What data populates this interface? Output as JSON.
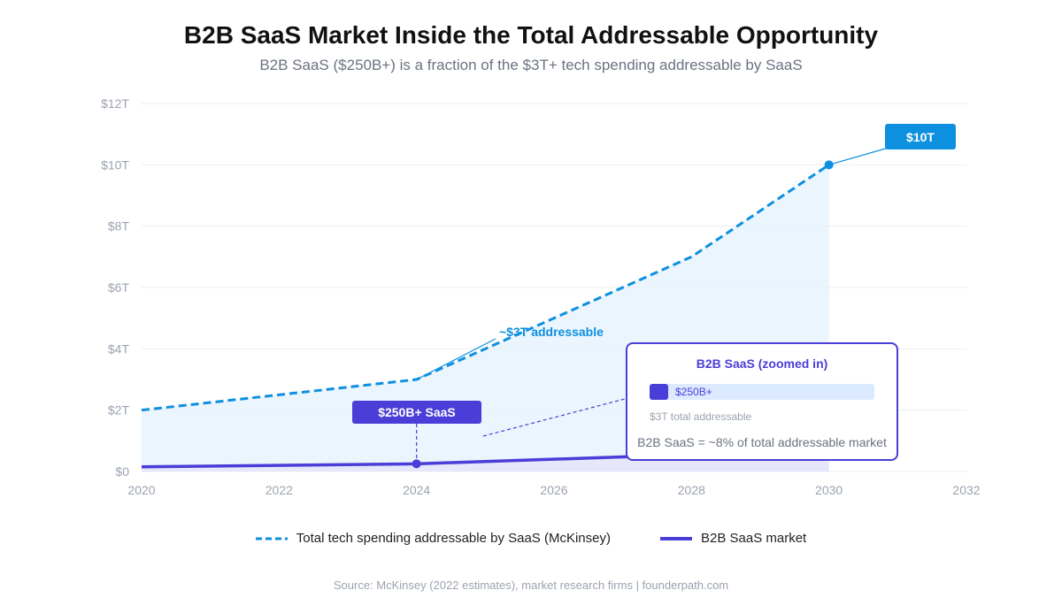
{
  "chart_data": {
    "type": "line",
    "title": "B2B SaaS Market Inside the Total Addressable Opportunity",
    "subtitle": "B2B SaaS ($250B+) is a fraction of the $3T+ tech spending addressable by SaaS",
    "xlim": [
      2020,
      2032
    ],
    "ylim": [
      0,
      12
    ],
    "x_ticks": [
      "2020",
      "2022",
      "2024",
      "2026",
      "2028",
      "2030",
      "2032"
    ],
    "y_ticks": [
      "$0",
      "$2T",
      "$4T",
      "$6T",
      "$8T",
      "$10T",
      "$12T"
    ],
    "grid": true,
    "legend_position": "bottom",
    "series": [
      {
        "name": "Total tech spending addressable by SaaS (McKinsey)",
        "color": "#0e90e0",
        "style": "dashed",
        "x": [
          2020,
          2024,
          2028,
          2030
        ],
        "y": [
          2,
          3,
          7,
          10
        ]
      },
      {
        "name": "B2B SaaS market",
        "color": "#4a3ed8",
        "style": "solid",
        "x": [
          2020,
          2024,
          2028,
          2030
        ],
        "y": [
          0.15,
          0.25,
          0.55,
          0.8
        ]
      }
    ],
    "annotations": {
      "addressable": "~$3T addressable",
      "ten_t": "$10T",
      "saas": "$250B+ SaaS",
      "zoom_title": "B2B SaaS (zoomed in)",
      "zoom_bar_label": "$250B+",
      "zoom_total": "$3T total addressable",
      "zoom_pct": "B2B SaaS = ~8% of total addressable market",
      "zoom_fraction": 0.083
    }
  },
  "source": "Source: McKinsey (2022 estimates), market research firms | founderpath.com"
}
